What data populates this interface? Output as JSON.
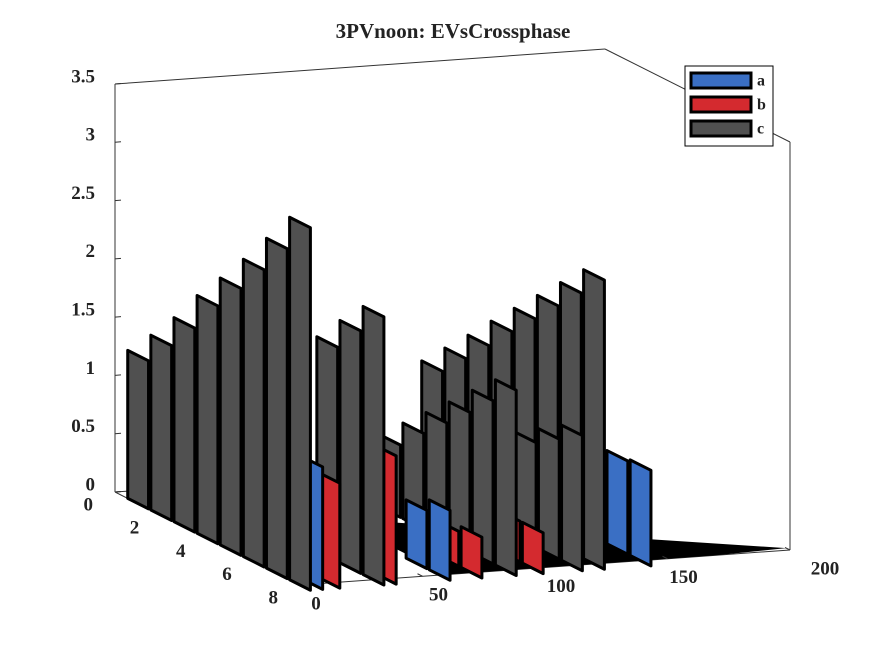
{
  "chart_data": {
    "type": "bar3",
    "title": "3PVnoon: EVsCrossphase",
    "xlim": [
      0,
      200
    ],
    "xticks": [
      0,
      50,
      100,
      150,
      200
    ],
    "ylim": [
      0,
      8
    ],
    "yticks": [
      0,
      2,
      4,
      6,
      8
    ],
    "zlim": [
      0,
      3.5
    ],
    "zticks": [
      0,
      0.5,
      1,
      1.5,
      2,
      2.5,
      3,
      3.5
    ],
    "legend": "top-right",
    "series": [
      {
        "name": "a",
        "color": "#3a6fc4",
        "ribbons": [
          {
            "x": 5,
            "y": [
              7,
              8
            ],
            "values": [
              0.9,
              1.05
            ]
          },
          {
            "x": 57,
            "y": [
              7,
              8
            ],
            "values": [
              0.5,
              0.6
            ]
          },
          {
            "x": 139,
            "y": [
              7,
              8
            ],
            "values": [
              0.8,
              0.82
            ]
          }
        ]
      },
      {
        "name": "b",
        "color": "#d42a2f",
        "ribbons": [
          {
            "x": 12,
            "y": [
              7,
              8
            ],
            "values": [
              0.8,
              0.9
            ]
          },
          {
            "x": 35,
            "y": [
              7,
              8
            ],
            "values": [
              1.0,
              1.1
            ]
          },
          {
            "x": 70,
            "y": [
              7,
              8
            ],
            "values": [
              0.3,
              0.35
            ]
          },
          {
            "x": 95,
            "y": [
              7,
              8
            ],
            "values": [
              0.35,
              0.35
            ]
          }
        ]
      },
      {
        "name": "c",
        "color": "#505050",
        "ribbons": [
          {
            "x": 0,
            "y": [
              1,
              2,
              3,
              4,
              5,
              6,
              7,
              8
            ],
            "values": [
              1.27,
              1.5,
              1.75,
              2.04,
              2.29,
              2.55,
              2.83,
              3.11
            ]
          },
          {
            "x": 30,
            "y": [
              6,
              7,
              8
            ],
            "values": [
              1.84,
              2.08,
              2.3
            ]
          },
          {
            "x": 84,
            "y": [
              3,
              4,
              5,
              6,
              7,
              8
            ],
            "values": [
              0.62,
              0.82,
              1.01,
              1.2,
              1.4,
              1.59
            ]
          },
          {
            "x": 111,
            "y": [
              6,
              7,
              8
            ],
            "values": [
              0.9,
              1.03,
              1.16
            ]
          },
          {
            "x": 120,
            "y": [
              1,
              2,
              3,
              4,
              5,
              6,
              7,
              8
            ],
            "values": [
              1.0,
              1.21,
              1.42,
              1.64,
              1.85,
              2.06,
              2.27,
              2.48
            ]
          }
        ]
      }
    ]
  }
}
